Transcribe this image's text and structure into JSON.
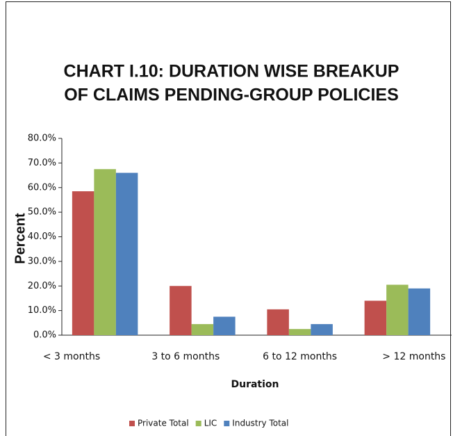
{
  "chart_data": {
    "type": "bar",
    "title": [
      "CHART I.10: DURATION WISE BREAKUP",
      "OF CLAIMS PENDING-GROUP POLICIES"
    ],
    "x_label": "Duration",
    "y_label": "Percent",
    "categories": [
      "< 3 months",
      "3 to 6 months",
      "6 to 12 months",
      "> 12 months"
    ],
    "series": [
      {
        "name": "Private Total",
        "color": "#c0504d",
        "values": [
          58.5,
          20,
          10.5,
          14
        ]
      },
      {
        "name": "LIC",
        "color": "#9bbb59",
        "values": [
          67.5,
          4.5,
          2.5,
          20.5
        ]
      },
      {
        "name": "Industry Total",
        "color": "#4f81bd",
        "values": [
          66,
          7.5,
          4.5,
          19
        ]
      }
    ],
    "ylim": [
      0,
      80
    ],
    "yticks": [
      {
        "value": 0,
        "label": "0.0%"
      },
      {
        "value": 10,
        "label": "10.0%"
      },
      {
        "value": 20,
        "label": "20.0%"
      },
      {
        "value": 30,
        "label": "30.0%"
      },
      {
        "value": 40,
        "label": "40.0%"
      },
      {
        "value": 50,
        "label": "50.0%"
      },
      {
        "value": 60,
        "label": "60.0%"
      },
      {
        "value": 70,
        "label": "70.0%"
      },
      {
        "value": 80,
        "label": "80.0%"
      }
    ],
    "legend": "bottom"
  }
}
